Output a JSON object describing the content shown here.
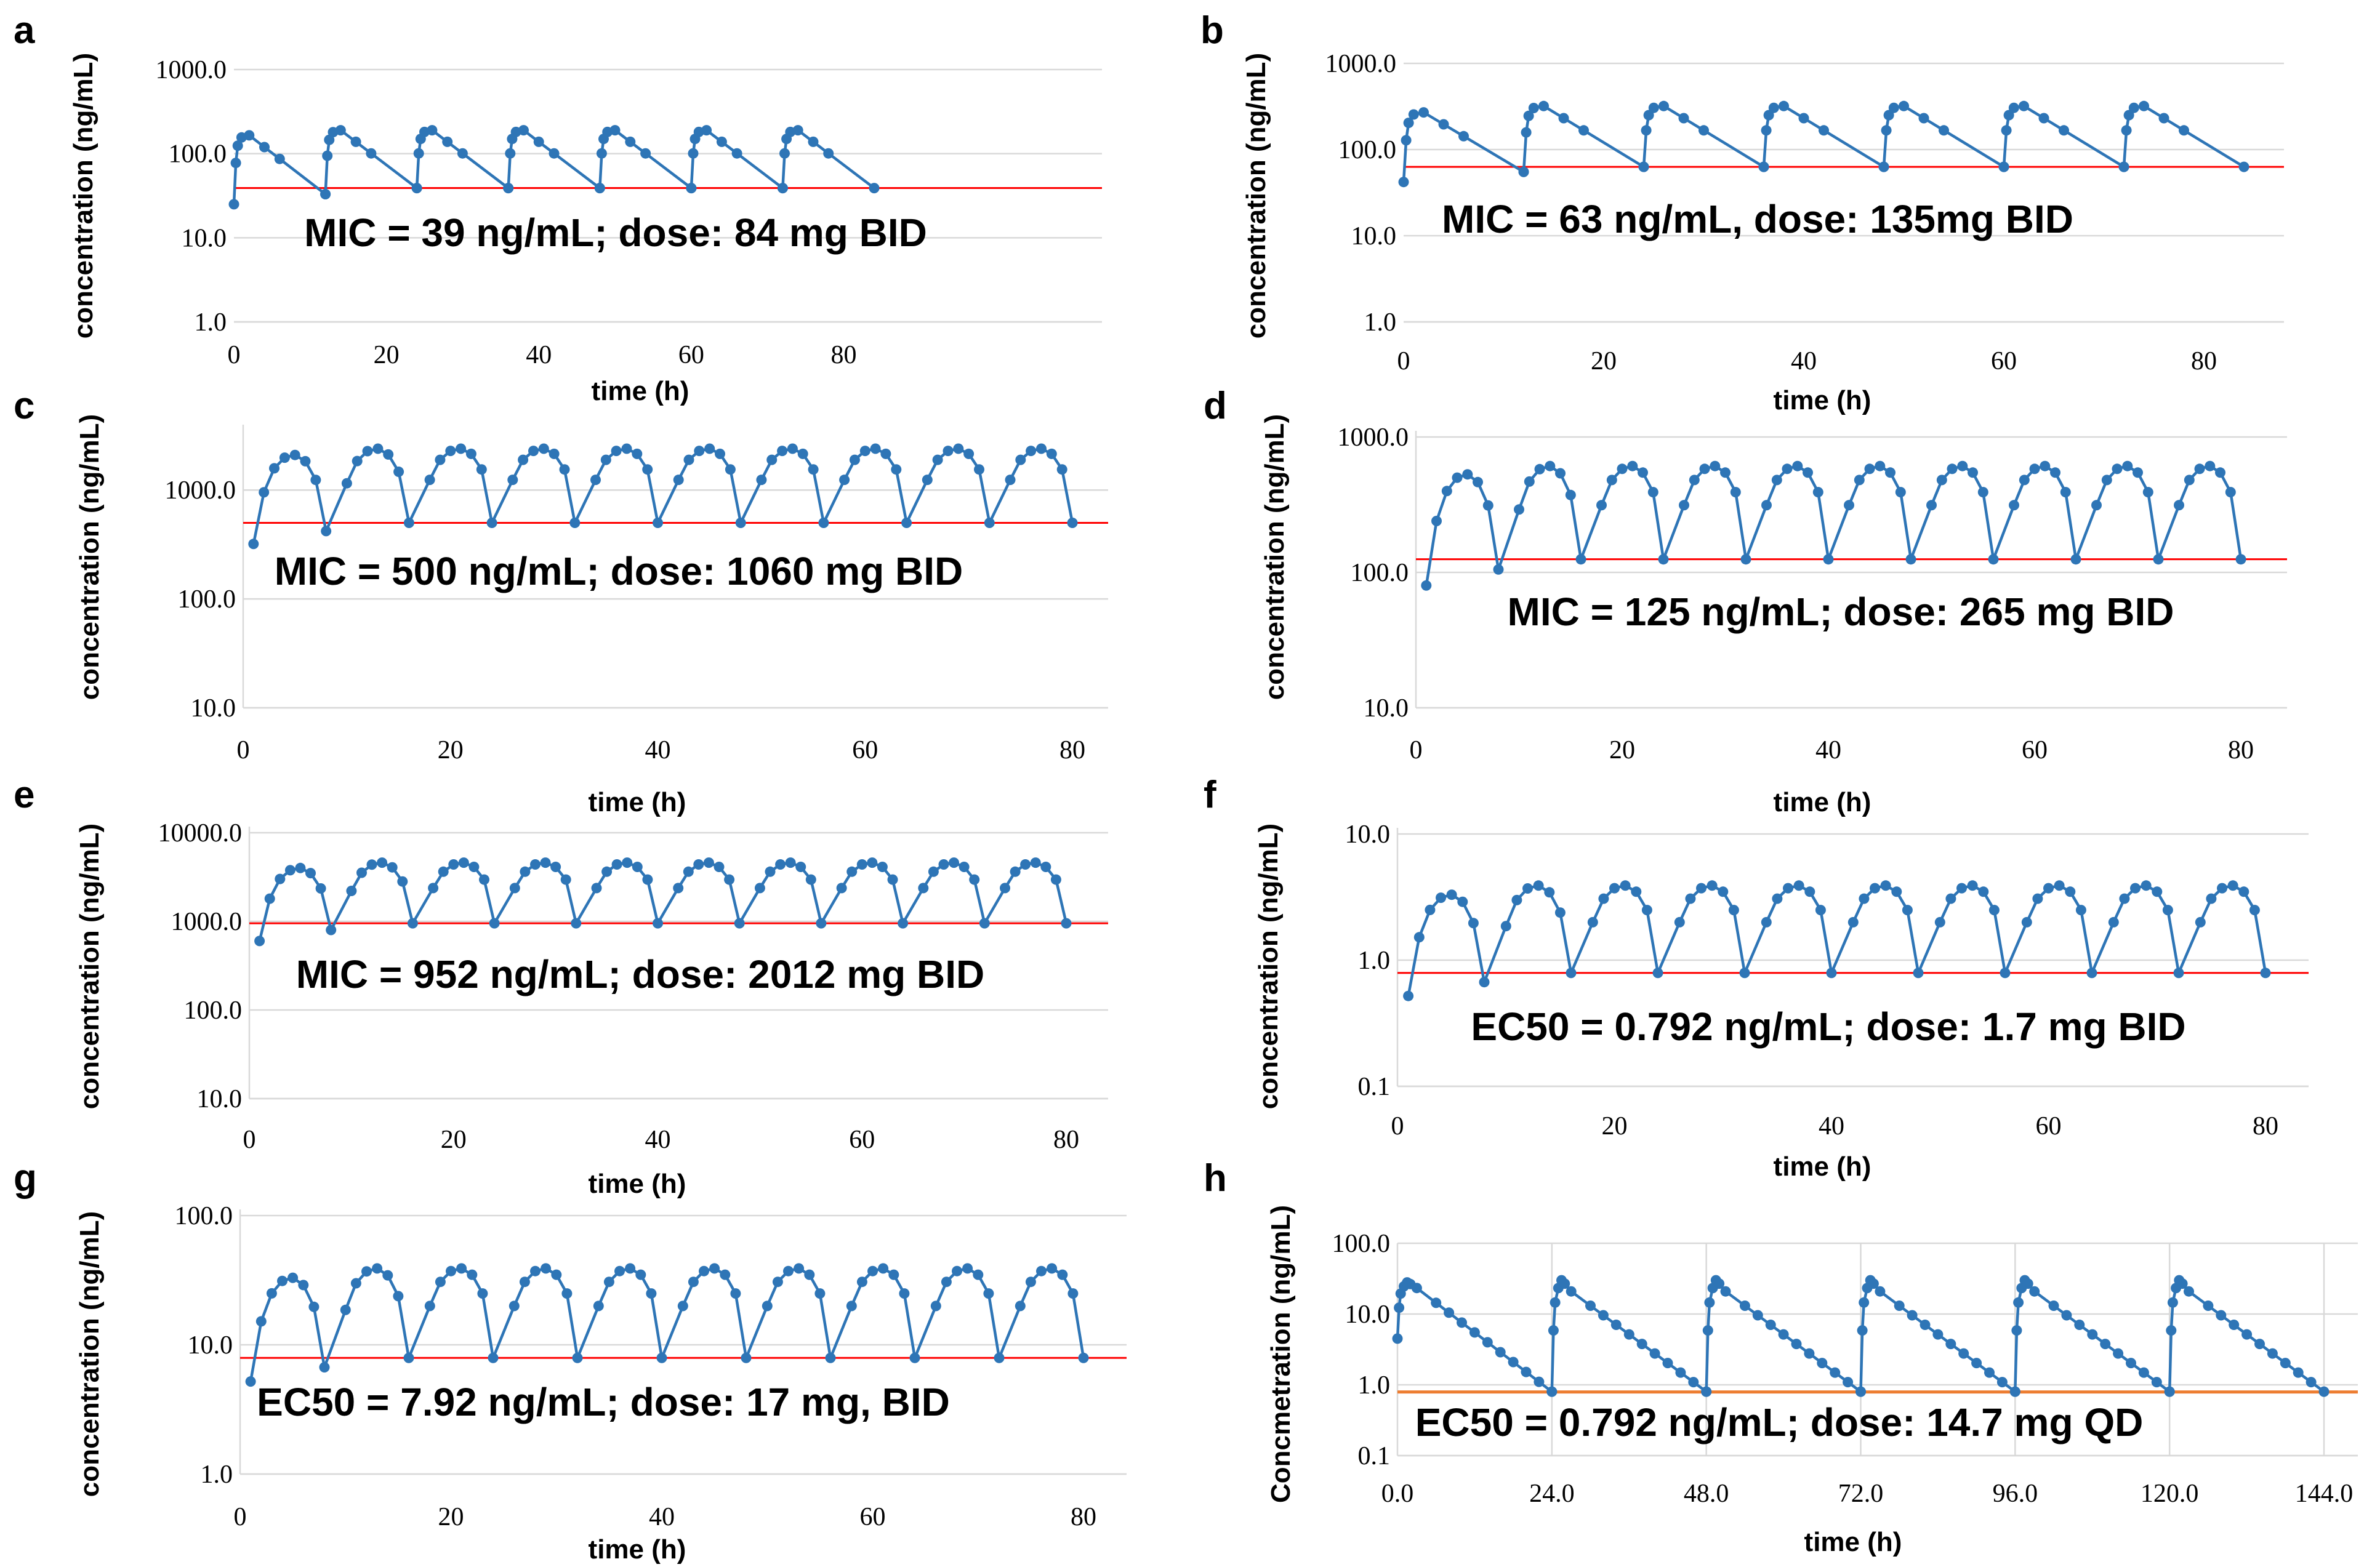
{
  "chart_data": [
    {
      "panel": "a",
      "type": "line",
      "series_name": "concentration",
      "dose_interval_h": 12,
      "n_doses": 7,
      "x_range": [
        0,
        84
      ],
      "xticks": [
        "0",
        "20",
        "40",
        "60",
        "80"
      ],
      "ylim": [
        1,
        1000
      ],
      "yticks": [
        "1.0",
        "10.0",
        "100.0",
        "1000.0"
      ],
      "ylabel": "concentration (ng/mL)",
      "xlabel": "time (h)",
      "threshold": 39,
      "peak_first": 165,
      "peak_steady": 190,
      "trough_first": 33,
      "trough_steady": 39,
      "first_point": 25,
      "annotation": "MIC = 39 ng/mL; dose: 84 mg BID"
    },
    {
      "panel": "b",
      "type": "line",
      "series_name": "concentration",
      "dose_interval_h": 12,
      "n_doses": 7,
      "x_range": [
        0,
        84
      ],
      "xticks": [
        "0",
        "20",
        "40",
        "60",
        "80"
      ],
      "ylim": [
        1,
        1000
      ],
      "yticks": [
        "1.0",
        "10.0",
        "100.0",
        "1000.0"
      ],
      "ylabel": "concentration (ng/mL)",
      "xlabel": "time (h)",
      "threshold": 63,
      "peak_first": 270,
      "peak_steady": 320,
      "trough_first": 55,
      "trough_steady": 63,
      "first_point": 42,
      "annotation": "MIC = 63 ng/mL, dose: 135mg BID"
    },
    {
      "panel": "c",
      "type": "line",
      "series_name": "concentration",
      "dose_interval_h": 8,
      "n_doses": 10,
      "x_range": [
        1,
        80
      ],
      "xticks": [
        "0",
        "20",
        "40",
        "60",
        "80"
      ],
      "ylim": [
        10,
        3500
      ],
      "yticks": [
        "10.0",
        "100.0",
        "1000.0"
      ],
      "ylabel": "concentration (ng/mL)",
      "xlabel": "time (h)",
      "threshold": 500,
      "peak_first": 2100,
      "peak_steady": 2400,
      "trough_first": 420,
      "trough_steady": 500,
      "first_point": 320,
      "annotation": "MIC = 500 ng/mL; dose: 1060 mg BID"
    },
    {
      "panel": "d",
      "type": "line",
      "series_name": "concentration",
      "dose_interval_h": 8,
      "n_doses": 10,
      "x_range": [
        1,
        80
      ],
      "xticks": [
        "0",
        "20",
        "40",
        "60",
        "80"
      ],
      "ylim": [
        10,
        1000
      ],
      "yticks": [
        "10.0",
        "100.0",
        "1000.0"
      ],
      "ylabel": "concentration (ng/mL)",
      "xlabel": "time (h)",
      "threshold": 125,
      "peak_first": 530,
      "peak_steady": 610,
      "trough_first": 105,
      "trough_steady": 125,
      "first_point": 80,
      "annotation": "MIC = 125 ng/mL; dose: 265 mg BID"
    },
    {
      "panel": "e",
      "type": "line",
      "series_name": "concentration",
      "dose_interval_h": 8,
      "n_doses": 10,
      "x_range": [
        1,
        80
      ],
      "xticks": [
        "0",
        "20",
        "40",
        "60",
        "80"
      ],
      "ylim": [
        10,
        10000
      ],
      "yticks": [
        "10.0",
        "100.0",
        "1000.0",
        "10000.0"
      ],
      "ylabel": "concentration (ng/mL)",
      "xlabel": "time (h)",
      "threshold": 952,
      "peak_first": 4000,
      "peak_steady": 4600,
      "trough_first": 800,
      "trough_steady": 952,
      "first_point": 600,
      "annotation": "MIC = 952 ng/mL; dose: 2012 mg BID"
    },
    {
      "panel": "f",
      "type": "line",
      "series_name": "concentration",
      "dose_interval_h": 8,
      "n_doses": 10,
      "x_range": [
        1,
        80
      ],
      "xticks": [
        "0",
        "20",
        "40",
        "60",
        "80"
      ],
      "ylim": [
        0.1,
        10
      ],
      "yticks": [
        "0.1",
        "1.0",
        "10.0"
      ],
      "ylabel": "concentration (ng/mL)",
      "xlabel": "time (h)",
      "threshold": 0.792,
      "peak_first": 3.3,
      "peak_steady": 3.9,
      "trough_first": 0.67,
      "trough_steady": 0.792,
      "first_point": 0.52,
      "annotation": "EC50 = 0.792 ng/mL; dose: 1.7 mg BID"
    },
    {
      "panel": "g",
      "type": "line",
      "series_name": "concentration",
      "dose_interval_h": 8,
      "n_doses": 10,
      "x_range": [
        1,
        80
      ],
      "xticks": [
        "0",
        "20",
        "40",
        "60",
        "80"
      ],
      "ylim": [
        1,
        100
      ],
      "yticks": [
        "1.0",
        "10.0",
        "100.0"
      ],
      "ylabel": "concentration (ng/mL)",
      "xlabel": "time (h)",
      "threshold": 7.92,
      "peak_first": 33,
      "peak_steady": 39,
      "trough_first": 6.7,
      "trough_steady": 7.92,
      "first_point": 5.2,
      "annotation": "EC50 = 7.92 ng/mL; dose: 17 mg, BID"
    },
    {
      "panel": "h",
      "type": "line",
      "series_name": "concentration",
      "dose_interval_h": 24,
      "n_doses": 6,
      "x_range": [
        0,
        144
      ],
      "xticks": [
        "0.0",
        "24.0",
        "48.0",
        "72.0",
        "96.0",
        "120.0",
        "144.0"
      ],
      "ylim": [
        0.1,
        100
      ],
      "yticks": [
        "0.1",
        "1.0",
        "10.0",
        "100.0"
      ],
      "ylabel": "Concmetration (ng/mL)",
      "xlabel": "time (h)",
      "threshold": 0.792,
      "peak_first": 28,
      "peak_steady": 30,
      "trough_first": 0.8,
      "trough_steady": 0.8,
      "first_point": 4.5,
      "annotation": "EC50 = 0.792 ng/mL; dose: 14.7 mg QD"
    }
  ],
  "colors": {
    "series": "#2e75b6",
    "threshold_red": "#ff0000",
    "threshold_orange": "#ed7d31",
    "grid": "#d9d9d9"
  }
}
